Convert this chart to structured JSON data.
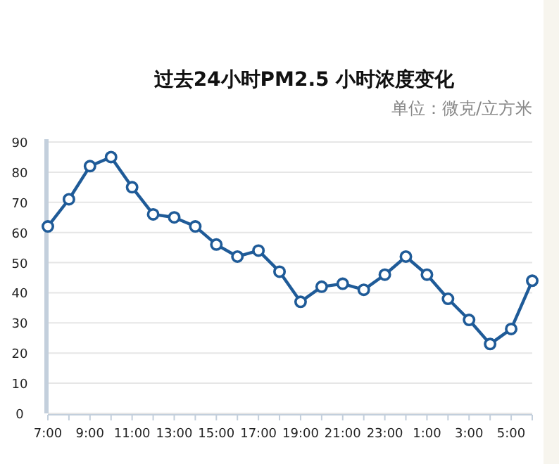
{
  "chart_data": {
    "type": "line",
    "title": "过去24小时PM2.5 小时浓度变化",
    "subtitle": "单位：微克/立方米",
    "categories": [
      "7:00",
      null,
      "9:00",
      null,
      "11:00",
      null,
      "13:00",
      null,
      "15:00",
      null,
      "17:00",
      null,
      "19:00",
      null,
      "21:00",
      null,
      "23:00",
      null,
      "1:00",
      null,
      "3:00",
      null,
      "5:00",
      null
    ],
    "series": [
      {
        "color": "#1f5b98",
        "values": [
          62,
          71,
          82,
          85,
          75,
          66,
          65,
          62,
          56,
          52,
          54,
          47,
          37,
          42,
          43,
          41,
          46,
          52,
          46,
          38,
          31,
          23,
          28,
          44
        ]
      }
    ],
    "ylim": [
      0,
      90
    ],
    "yticks": [
      0,
      10,
      20,
      30,
      40,
      50,
      60,
      70,
      80,
      90
    ],
    "grid": "y",
    "marker": "circle",
    "line_style": "solid"
  }
}
